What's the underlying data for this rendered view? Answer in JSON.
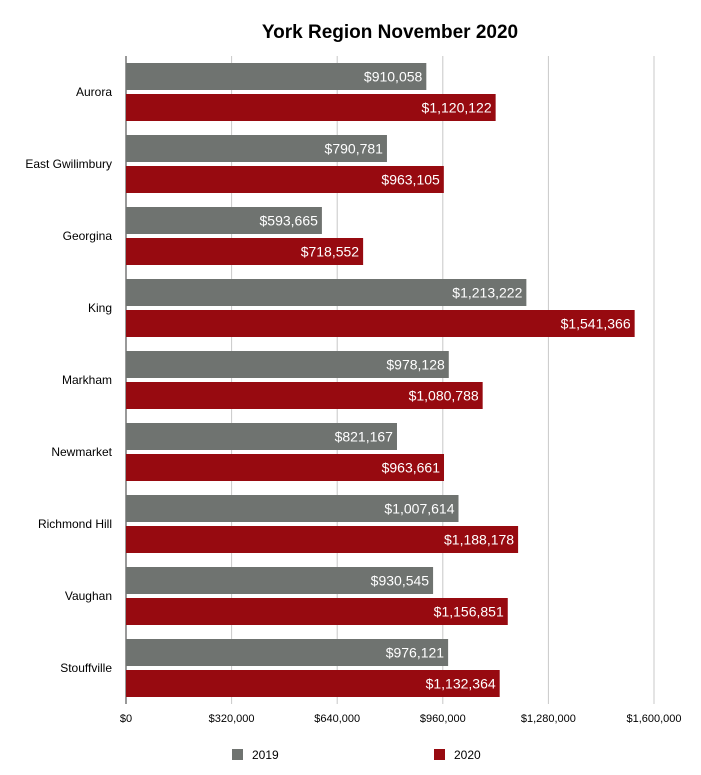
{
  "chart_data": {
    "type": "bar",
    "orientation": "horizontal",
    "title": "York Region November 2020",
    "categories": [
      "Aurora",
      "East Gwilimbury",
      "Georgina",
      "King",
      "Markham",
      "Newmarket",
      "Richmond Hill",
      "Vaughan",
      "Stouffville"
    ],
    "series": [
      {
        "name": "2019",
        "color": "#6f7370",
        "values": [
          910058,
          790781,
          593665,
          1213222,
          978128,
          821167,
          1007614,
          930545,
          976121
        ],
        "labels": [
          "$910,058",
          "$790,781",
          "$593,665",
          "$1,213,222",
          "$978,128",
          "$821,167",
          "$1,007,614",
          "$930,545",
          "$976,121"
        ]
      },
      {
        "name": "2020",
        "color": "#970a10",
        "values": [
          1120122,
          963105,
          718552,
          1541366,
          1080788,
          963661,
          1188178,
          1156851,
          1132364
        ],
        "labels": [
          "$1,120,122",
          "$963,105",
          "$718,552",
          "$1,541,366",
          "$1,080,788",
          "$963,661",
          "$1,188,178",
          "$1,156,851",
          "$1,132,364"
        ]
      }
    ],
    "xlim": [
      0,
      1600000
    ],
    "xticks": [
      0,
      320000,
      640000,
      960000,
      1280000,
      1600000
    ],
    "xtick_labels": [
      "$0",
      "$320,000",
      "$640,000",
      "$960,000",
      "$1,280,000",
      "$1,600,000"
    ],
    "grid": true,
    "legend_position": "bottom"
  }
}
